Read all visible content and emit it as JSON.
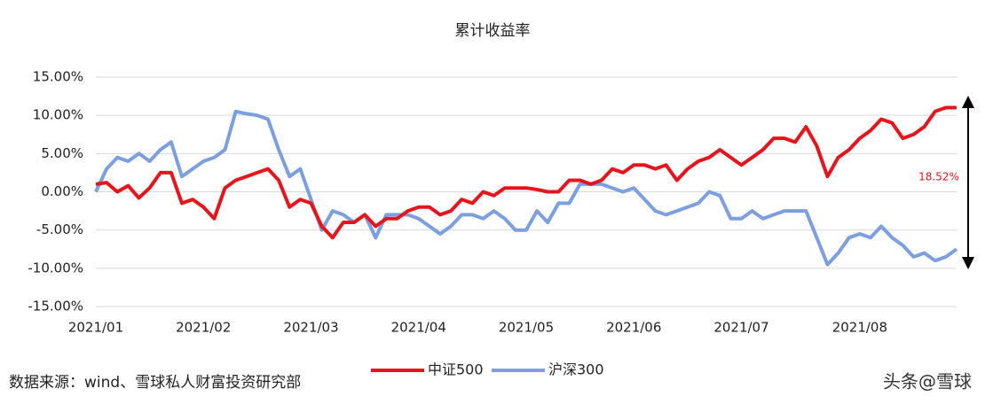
{
  "chart_data": {
    "type": "line",
    "title": "累计收益率",
    "categories": [
      "2021/01",
      null,
      null,
      null,
      null,
      null,
      null,
      null,
      null,
      null,
      "2021/02",
      null,
      null,
      null,
      null,
      null,
      null,
      null,
      null,
      null,
      "2021/03",
      null,
      null,
      null,
      null,
      null,
      null,
      null,
      null,
      null,
      "2021/04",
      null,
      null,
      null,
      null,
      null,
      null,
      null,
      null,
      null,
      "2021/05",
      null,
      null,
      null,
      null,
      null,
      null,
      null,
      null,
      null,
      "2021/06",
      null,
      null,
      null,
      null,
      null,
      null,
      null,
      null,
      null,
      "2021/07",
      null,
      null,
      null,
      null,
      null,
      null,
      null,
      null,
      null,
      null,
      "2021/08",
      null,
      null,
      null,
      null,
      null,
      null,
      null,
      null,
      null
    ],
    "series": [
      {
        "name": "中证500",
        "color": "#e8141b",
        "values": [
          1.0,
          1.2,
          0.0,
          0.8,
          -0.8,
          0.5,
          2.5,
          2.5,
          -1.5,
          -1.0,
          -2.0,
          -3.5,
          0.5,
          1.5,
          2.0,
          2.5,
          3.0,
          1.5,
          -2.0,
          -1.0,
          -1.5,
          -4.5,
          -6.0,
          -4.0,
          -4.0,
          -3.0,
          -4.5,
          -3.5,
          -3.5,
          -2.5,
          -2.0,
          -2.0,
          -3.0,
          -2.5,
          -1.0,
          -1.5,
          0.0,
          -0.5,
          0.5,
          0.5,
          0.5,
          0.3,
          0.0,
          0.0,
          1.5,
          1.5,
          1.0,
          1.5,
          3.0,
          2.5,
          3.5,
          3.5,
          3.0,
          3.5,
          1.5,
          3.0,
          4.0,
          4.5,
          5.5,
          4.5,
          3.5,
          4.5,
          5.5,
          7.0,
          7.0,
          6.5,
          8.5,
          6.0,
          2.0,
          4.5,
          5.5,
          7.0,
          8.0,
          9.5,
          9.0,
          7.0,
          7.5,
          8.5,
          10.5,
          11.0,
          11.0
        ]
      },
      {
        "name": "沪深300",
        "color": "#7b9fe0",
        "values": [
          0.0,
          3.0,
          4.5,
          4.0,
          5.0,
          4.0,
          5.5,
          6.5,
          2.0,
          3.0,
          4.0,
          4.5,
          5.5,
          10.5,
          10.2,
          10.0,
          9.5,
          5.5,
          2.0,
          3.0,
          -1.0,
          -5.0,
          -2.5,
          -3.0,
          -4.0,
          -3.0,
          -6.0,
          -3.0,
          -3.0,
          -3.0,
          -3.5,
          -4.5,
          -5.5,
          -4.5,
          -3.0,
          -3.0,
          -3.5,
          -2.5,
          -3.5,
          -5.0,
          -5.0,
          -2.5,
          -4.0,
          -1.5,
          -1.5,
          1.0,
          1.0,
          1.0,
          0.5,
          0.0,
          0.5,
          -1.0,
          -2.5,
          -3.0,
          -2.5,
          -2.0,
          -1.5,
          0.0,
          -0.5,
          -3.5,
          -3.5,
          -2.5,
          -3.5,
          -3.0,
          -2.5,
          -2.5,
          -2.5,
          -6.0,
          -9.5,
          -8.0,
          -6.0,
          -5.5,
          -6.0,
          -4.5,
          -6.0,
          -7.0,
          -8.5,
          -8.0,
          -9.0,
          -8.5,
          -7.5
        ]
      }
    ],
    "ylim": [
      -15,
      15
    ],
    "yticks": [
      {
        "value": -15,
        "label": "-15.00%"
      },
      {
        "value": -10,
        "label": "-10.00%"
      },
      {
        "value": -5,
        "label": "-5.00%"
      },
      {
        "value": 0,
        "label": "0.00%"
      },
      {
        "value": 5,
        "label": "5.00%"
      },
      {
        "value": 10,
        "label": "10.00%"
      },
      {
        "value": 15,
        "label": "15.00%"
      }
    ],
    "grid": true,
    "annotation": "18.52%",
    "source": "数据来源：wind、雪球私人财富投资研究部",
    "watermark": "头条@雪球"
  }
}
